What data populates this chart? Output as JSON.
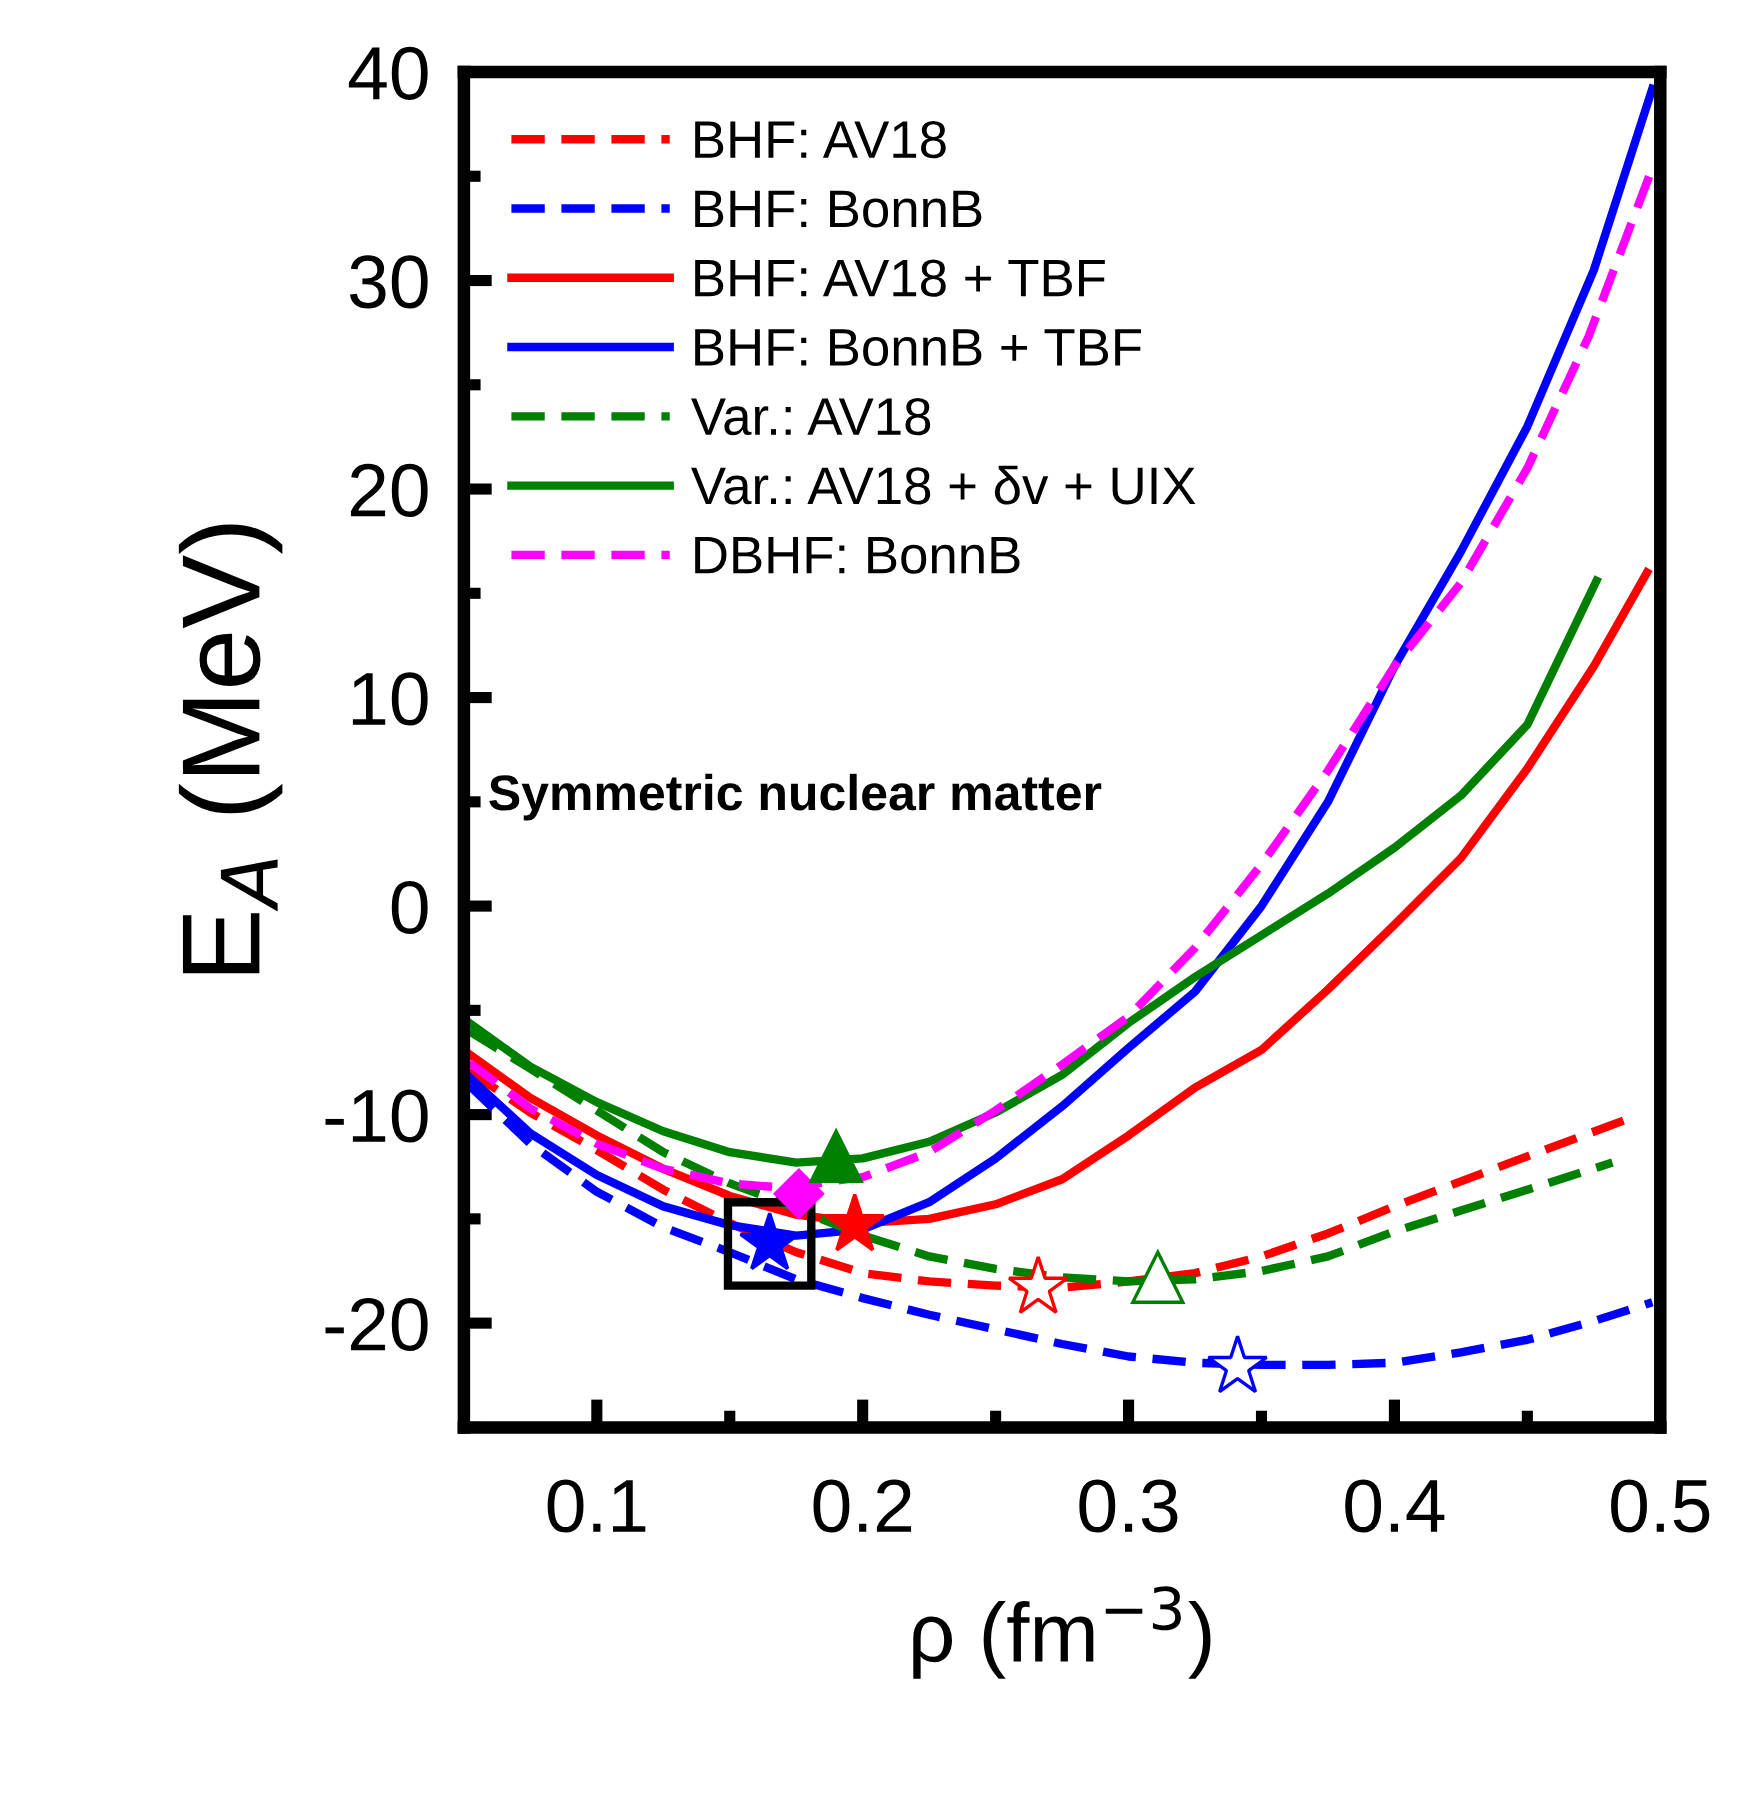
{
  "chart_data": {
    "type": "line",
    "xlabel": "ρ (fm$^{−3}$)",
    "ylabel": "E$_{A}$ (MeV)",
    "xlim": [
      0.05,
      0.5
    ],
    "xticks": [
      0.1,
      0.2,
      0.3,
      0.4,
      0.5
    ],
    "ylim": [
      -25,
      40
    ],
    "yticks": [
      -20,
      -10,
      0,
      10,
      20,
      30,
      40
    ],
    "grid": false,
    "legend": "top left",
    "marker": "none",
    "annotations": [
      "Symmetric nuclear matter"
    ],
    "series": [
      {
        "name": "BHF: AV18",
        "color": "#ff0000",
        "line_style": "dashed",
        "x": [
          0.052,
          0.075,
          0.1,
          0.125,
          0.15,
          0.175,
          0.2,
          0.225,
          0.25,
          0.275,
          0.3,
          0.325,
          0.35,
          0.375,
          0.4,
          0.425,
          0.45,
          0.488
        ],
        "values": [
          -7.9,
          -9.9,
          -11.7,
          -13.6,
          -15.2,
          -16.6,
          -17.6,
          -18.0,
          -18.2,
          -18.3,
          -18.0,
          -17.6,
          -16.8,
          -15.7,
          -14.4,
          -13.2,
          -12.0,
          -10.2
        ]
      },
      {
        "name": "BHF: BonnB",
        "color": "#0000ff",
        "line_style": "dashed",
        "x": [
          0.052,
          0.075,
          0.1,
          0.125,
          0.15,
          0.175,
          0.2,
          0.225,
          0.25,
          0.275,
          0.3,
          0.325,
          0.35,
          0.375,
          0.4,
          0.425,
          0.45,
          0.475,
          0.497
        ],
        "values": [
          -8.6,
          -11.4,
          -13.7,
          -15.4,
          -16.6,
          -17.9,
          -18.8,
          -19.6,
          -20.3,
          -21.0,
          -21.6,
          -21.9,
          -22.0,
          -22.0,
          -21.9,
          -21.4,
          -20.8,
          -19.9,
          -19.0
        ]
      },
      {
        "name": "BHF: AV18 + TBF",
        "color": "#ff0000",
        "line_style": "solid",
        "x": [
          0.052,
          0.075,
          0.1,
          0.125,
          0.15,
          0.175,
          0.2,
          0.225,
          0.25,
          0.275,
          0.3,
          0.325,
          0.35,
          0.375,
          0.4,
          0.425,
          0.45,
          0.475,
          0.495
        ],
        "values": [
          -7.1,
          -9.2,
          -11.0,
          -12.6,
          -13.9,
          -14.8,
          -15.2,
          -15.0,
          -14.3,
          -13.1,
          -11.0,
          -8.7,
          -6.9,
          -4.0,
          -0.9,
          2.3,
          6.6,
          11.5,
          16.0
        ]
      },
      {
        "name": "BHF: BonnB + TBF",
        "color": "#0000ff",
        "line_style": "solid",
        "x": [
          0.052,
          0.075,
          0.1,
          0.125,
          0.15,
          0.175,
          0.2,
          0.225,
          0.25,
          0.275,
          0.3,
          0.325,
          0.35,
          0.375,
          0.4,
          0.425,
          0.45,
          0.475,
          0.497
        ],
        "values": [
          -8.2,
          -10.9,
          -12.9,
          -14.4,
          -15.3,
          -15.8,
          -15.5,
          -14.2,
          -12.1,
          -9.6,
          -6.8,
          -4.1,
          0.0,
          5.0,
          11.5,
          17.0,
          23.0,
          30.5,
          39.2
        ]
      },
      {
        "name": "Var.: AV18",
        "color": "#008000",
        "line_style": "dashed",
        "x": [
          0.052,
          0.075,
          0.1,
          0.125,
          0.15,
          0.163,
          0.2,
          0.225,
          0.25,
          0.275,
          0.3,
          0.325,
          0.35,
          0.375,
          0.4,
          0.425,
          0.45,
          0.482
        ],
        "values": [
          -6.0,
          -7.8,
          -9.8,
          -11.8,
          -13.3,
          -13.9,
          -15.8,
          -16.8,
          -17.4,
          -17.8,
          -18.0,
          -17.9,
          -17.5,
          -16.8,
          -15.6,
          -14.6,
          -13.6,
          -12.3
        ]
      },
      {
        "name": "Var.: AV18 + δv + UIX",
        "color": "#008000",
        "line_style": "solid",
        "x": [
          0.052,
          0.075,
          0.1,
          0.125,
          0.15,
          0.175,
          0.2,
          0.225,
          0.25,
          0.275,
          0.3,
          0.325,
          0.35,
          0.375,
          0.4,
          0.425,
          0.45,
          0.476
        ],
        "values": [
          -5.6,
          -7.7,
          -9.4,
          -10.8,
          -11.8,
          -12.3,
          -12.1,
          -11.3,
          -9.9,
          -8.1,
          -5.6,
          -3.4,
          -1.4,
          0.6,
          2.8,
          5.3,
          8.7,
          15.6
        ]
      },
      {
        "name": "DBHF: BonnB",
        "color": "#ff00ff",
        "line_style": "dashed",
        "x": [
          0.052,
          0.075,
          0.1,
          0.125,
          0.15,
          0.17,
          0.2,
          0.225,
          0.25,
          0.275,
          0.3,
          0.325,
          0.35,
          0.375,
          0.4,
          0.425,
          0.45,
          0.473,
          0.497
        ],
        "values": [
          -7.5,
          -9.7,
          -11.4,
          -12.6,
          -13.3,
          -13.5,
          -13.0,
          -11.8,
          -9.8,
          -7.6,
          -5.3,
          -2.0,
          2.0,
          6.5,
          11.5,
          15.5,
          21.0,
          27.3,
          35.4
        ]
      },
      {
        "type": "scatter",
        "marker": "square",
        "color": "#000000",
        "x": [
          0.165
        ],
        "values": [
          -16.2
        ]
      },
      {
        "type": "scatter",
        "marker": "star",
        "color": "#0000ff",
        "colors": [
          "#0000ff"
        ],
        "x": [
          0.165
        ],
        "values": [
          -16.2
        ]
      },
      {
        "type": "scatter",
        "marker": "diamond",
        "color": "#ff00ff",
        "colors": [
          "#ff00ff"
        ],
        "x": [
          0.176
        ],
        "values": [
          -13.8
        ]
      },
      {
        "type": "scatter",
        "marker": "triangle",
        "color": "#008000",
        "colors": [
          "#008000"
        ],
        "x": [
          0.19
        ],
        "values": [
          -12.0
        ]
      },
      {
        "type": "scatter",
        "marker": "star",
        "color": "#ff0000",
        "colors": [
          "#ff0000"
        ],
        "x": [
          0.197
        ],
        "values": [
          -15.3
        ]
      },
      {
        "type": "scatter",
        "marker": "star",
        "color": "#ff0000",
        "colors": [
          "#ffffff"
        ],
        "x": [
          0.266
        ],
        "values": [
          -18.3
        ]
      },
      {
        "type": "scatter",
        "marker": "triangle",
        "color": "#008000",
        "colors": [
          "#ffffff"
        ],
        "x": [
          0.311
        ],
        "values": [
          -17.8
        ]
      },
      {
        "type": "scatter",
        "marker": "star",
        "color": "#0000ff",
        "colors": [
          "#ffffff"
        ],
        "x": [
          0.341
        ],
        "values": [
          -22.1
        ]
      }
    ]
  }
}
